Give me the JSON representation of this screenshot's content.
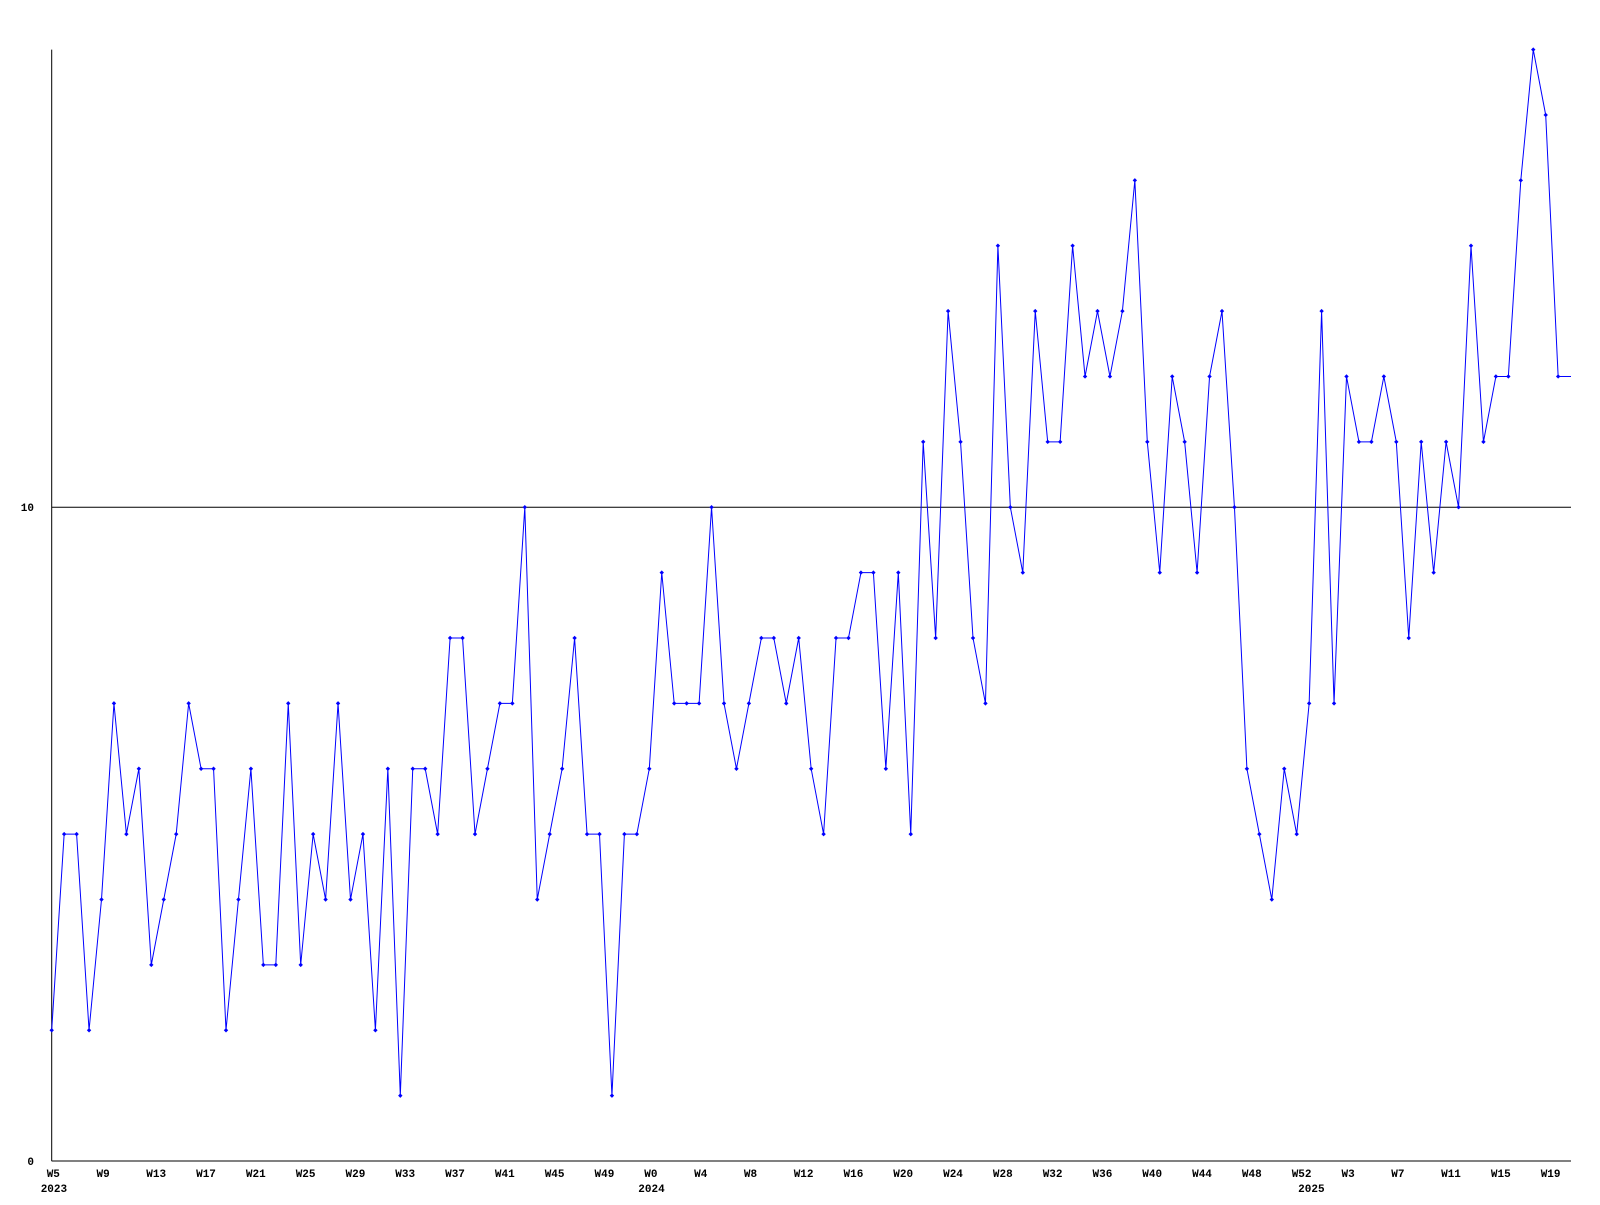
{
  "chart_data": {
    "type": "line",
    "categories": [
      "W5",
      null,
      null,
      null,
      "W9",
      null,
      null,
      null,
      "W13",
      null,
      null,
      null,
      "W17",
      null,
      null,
      null,
      "W21",
      null,
      null,
      null,
      "W25",
      null,
      null,
      null,
      "W29",
      null,
      null,
      null,
      "W33",
      null,
      null,
      null,
      "W37",
      null,
      null,
      null,
      "W41",
      null,
      null,
      null,
      "W45",
      null,
      null,
      null,
      "W49",
      null,
      null,
      null,
      "W0",
      null,
      null,
      null,
      "W4",
      null,
      null,
      null,
      "W8",
      null,
      null,
      null,
      "W12",
      null,
      null,
      null,
      "W16",
      null,
      null,
      null,
      "W20",
      null,
      null,
      null,
      "W24",
      null,
      null,
      null,
      "W28",
      null,
      null,
      null,
      "W32",
      null,
      null,
      null,
      "W36",
      null,
      null,
      null,
      "W40",
      null,
      null,
      null,
      "W44",
      null,
      null,
      null,
      "W48",
      null,
      null,
      null,
      "W52",
      null,
      null,
      null,
      "W3",
      null,
      null,
      null,
      "W7",
      null,
      null,
      null,
      "W11",
      null,
      null,
      null,
      "W15",
      null,
      null,
      null,
      "W19",
      null
    ],
    "years": [
      "2023",
      null,
      null,
      null,
      null,
      null,
      null,
      null,
      null,
      null,
      null,
      null,
      null,
      null,
      null,
      null,
      null,
      null,
      null,
      null,
      null,
      null,
      null,
      null,
      null,
      null,
      null,
      null,
      null,
      null,
      null,
      null,
      null,
      null,
      null,
      null,
      null,
      null,
      null,
      null,
      null,
      null,
      null,
      null,
      null,
      null,
      null,
      null,
      "2024",
      null,
      null,
      null,
      null,
      null,
      null,
      null,
      null,
      null,
      null,
      null,
      null,
      null,
      null,
      null,
      null,
      null,
      null,
      null,
      null,
      null,
      null,
      null,
      null,
      null,
      null,
      null,
      null,
      null,
      null,
      null,
      null,
      null,
      null,
      null,
      null,
      null,
      null,
      null,
      null,
      null,
      null,
      null,
      null,
      null,
      null,
      null,
      null,
      null,
      null,
      null,
      null,
      "2025",
      null,
      null,
      null,
      null,
      null,
      null,
      null,
      null,
      null,
      null,
      null,
      null,
      null,
      null,
      null,
      null,
      null,
      null,
      null,
      null
    ],
    "values": [
      2,
      5,
      5,
      2,
      4,
      7,
      5,
      6,
      3,
      4,
      5,
      7,
      6,
      6,
      2,
      4,
      6,
      3,
      3,
      7,
      3,
      5,
      4,
      7,
      4,
      5,
      2,
      6,
      1,
      6,
      6,
      5,
      8,
      8,
      5,
      6,
      7,
      7,
      10,
      4,
      5,
      6,
      8,
      5,
      5,
      1,
      5,
      5,
      6,
      9,
      7,
      7,
      7,
      10,
      7,
      6,
      7,
      8,
      8,
      7,
      8,
      6,
      5,
      8,
      8,
      9,
      9,
      6,
      9,
      5,
      11,
      8,
      13,
      11,
      8,
      7,
      14,
      10,
      9,
      13,
      11,
      11,
      14,
      12,
      13,
      12,
      13,
      15,
      11,
      9,
      12,
      11,
      9,
      12,
      13,
      10,
      6,
      5,
      4,
      6,
      5,
      7,
      13,
      7,
      12,
      11,
      11,
      12,
      11,
      8,
      11,
      9,
      11,
      10,
      14,
      11,
      12,
      12,
      15,
      17,
      16,
      12
    ],
    "color": "#0000ff",
    "ylim": [
      0,
      17
    ],
    "yticks": [
      0,
      10
    ],
    "grid": true
  }
}
